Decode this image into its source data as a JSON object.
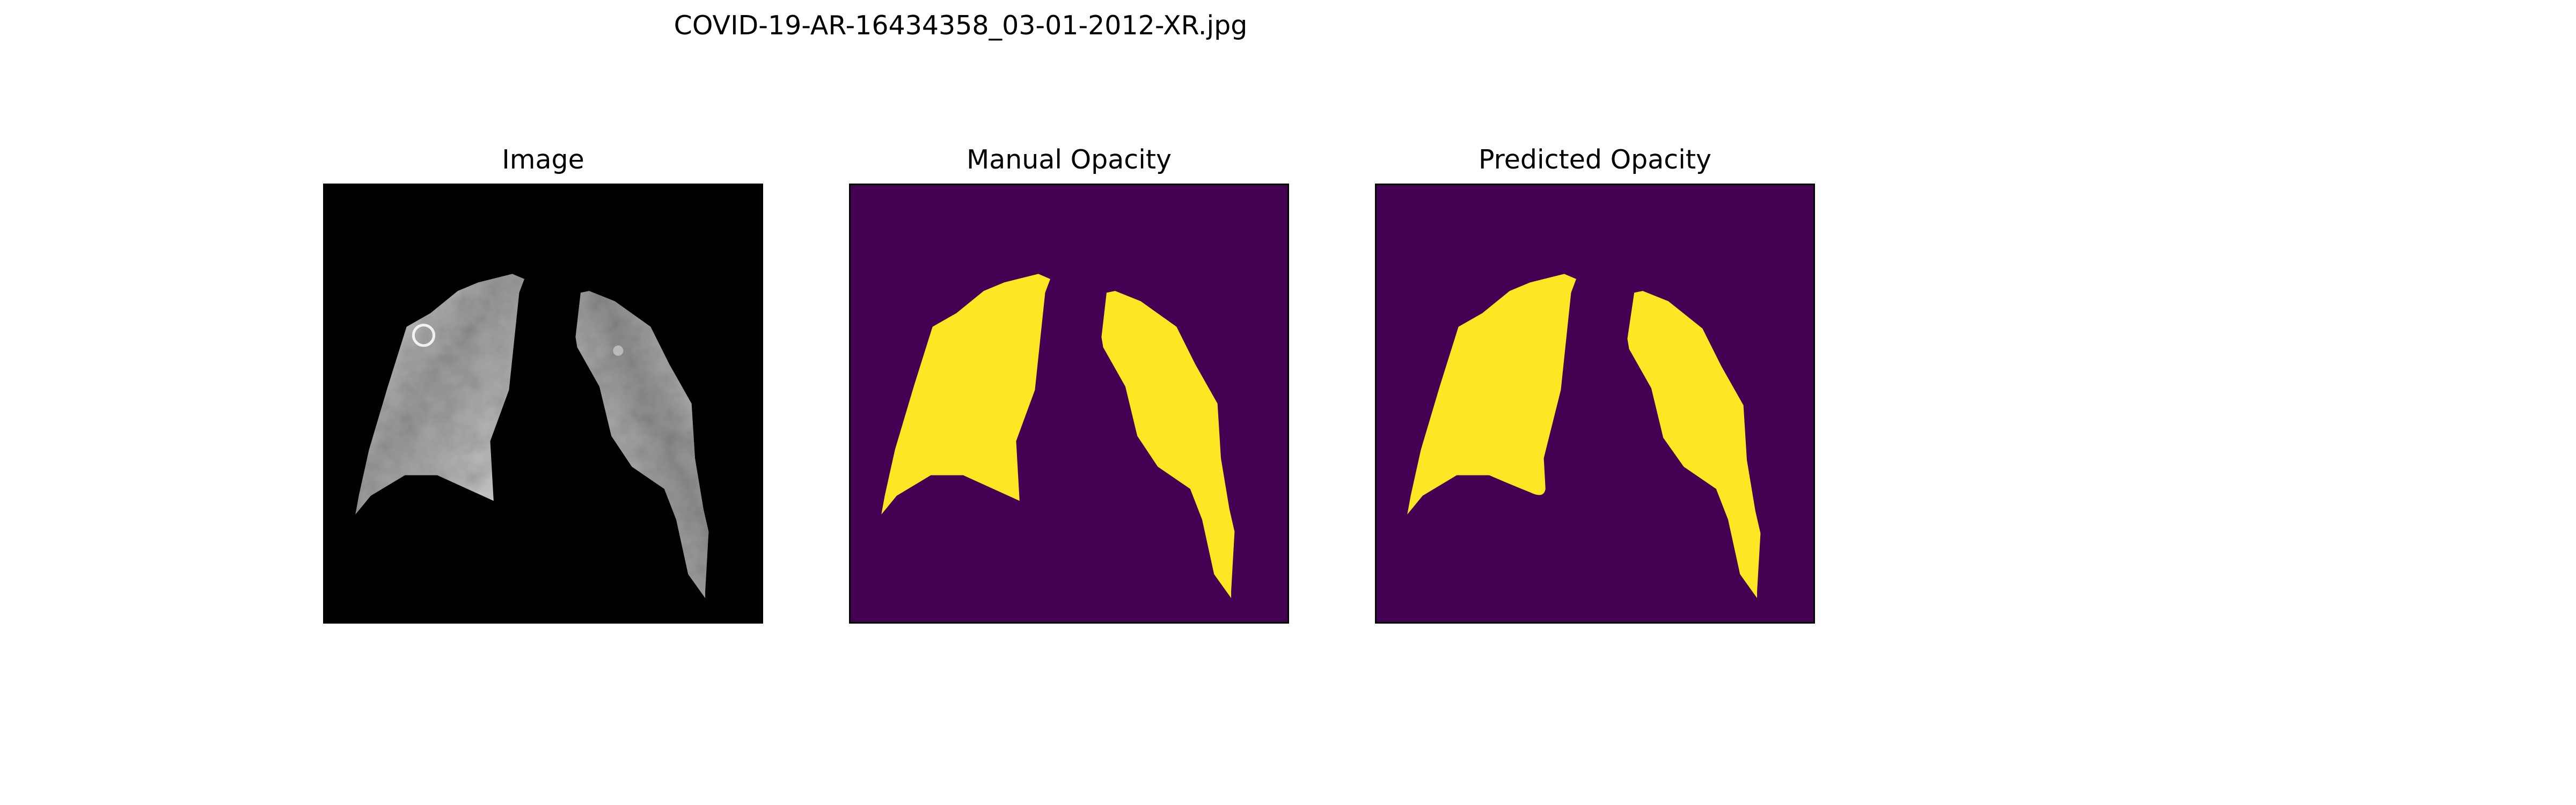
{
  "figure": {
    "title": "COVID-19-AR-16434358_03-01-2012-XR.jpg"
  },
  "panels": [
    {
      "title": "Image",
      "content": "masked chest x-ray lung region"
    },
    {
      "title": "Manual Opacity",
      "content": "lung opacity mask"
    },
    {
      "title": "Predicted Opacity",
      "content": "lung opacity mask"
    }
  ],
  "colors": {
    "background": "#000000",
    "mask_background": "#440154",
    "mask_foreground": "#fde725",
    "frame": "#000000"
  }
}
